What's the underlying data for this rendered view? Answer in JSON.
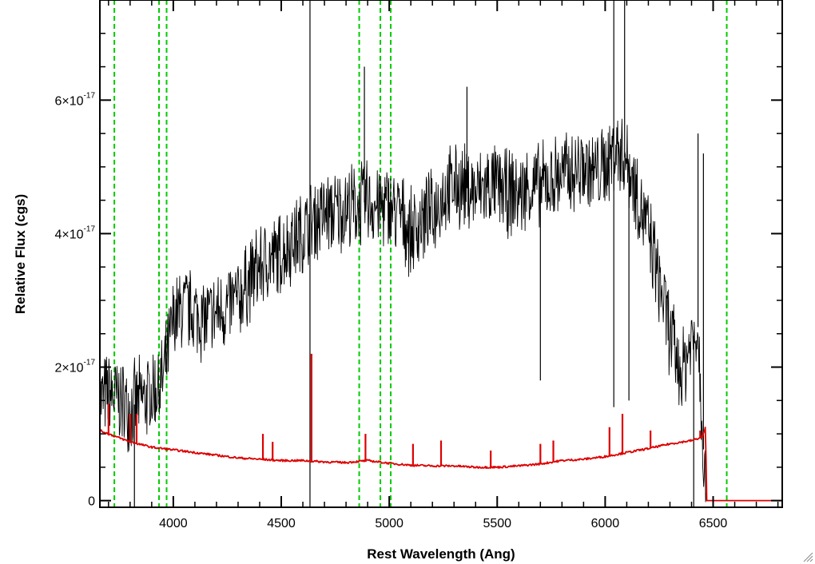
{
  "chart_data": {
    "type": "line",
    "title": "",
    "xlabel": "Rest Wavelength (Ang)",
    "ylabel": "Relative Flux (cgs)",
    "xlim": [
      3660,
      6820
    ],
    "ylim": [
      -1e-18,
      7.5e-17
    ],
    "x_ticks": [
      {
        "value": 4000,
        "label": "4000"
      },
      {
        "value": 4500,
        "label": "4500"
      },
      {
        "value": 5000,
        "label": "5000"
      },
      {
        "value": 5500,
        "label": "5500"
      },
      {
        "value": 6000,
        "label": "6000"
      },
      {
        "value": 6500,
        "label": "6500"
      }
    ],
    "y_ticks": [
      {
        "value": 0,
        "mantissa": "0",
        "exponent": ""
      },
      {
        "value": 2e-17,
        "mantissa": "2×10",
        "exponent": "-17"
      },
      {
        "value": 4e-17,
        "mantissa": "4×10",
        "exponent": "-17"
      },
      {
        "value": 6e-17,
        "mantissa": "6×10",
        "exponent": "-17"
      }
    ],
    "grid": false,
    "reference_lines": {
      "style": "dashed",
      "color": "#00cc00",
      "x": [
        3727,
        3934,
        3969,
        4861,
        4959,
        5007,
        6563
      ]
    },
    "series": [
      {
        "color": "#000000",
        "x": [
          3660,
          3700,
          3750,
          3800,
          3850,
          3900,
          3950,
          3970,
          4000,
          4050,
          4100,
          4150,
          4200,
          4250,
          4300,
          4350,
          4400,
          4450,
          4500,
          4550,
          4600,
          4650,
          4700,
          4750,
          4800,
          4850,
          4900,
          4950,
          5000,
          5050,
          5100,
          5150,
          5200,
          5250,
          5300,
          5350,
          5400,
          5450,
          5500,
          5550,
          5600,
          5650,
          5700,
          5750,
          5800,
          5850,
          5900,
          5950,
          6000,
          6050,
          6100,
          6150,
          6200,
          6250,
          6300,
          6350,
          6400,
          6430,
          6460,
          6470
        ],
        "y": [
          1.5e-17,
          1.6e-17,
          1.5e-17,
          1.4e-17,
          1.5e-17,
          1.6e-17,
          1.8e-17,
          2.1e-17,
          2.7e-17,
          2.9e-17,
          2.8e-17,
          2.7e-17,
          2.8e-17,
          2.9e-17,
          3e-17,
          3.3e-17,
          3.5e-17,
          3.6e-17,
          3.7e-17,
          3.9e-17,
          4e-17,
          4.2e-17,
          4.3e-17,
          4.3e-17,
          4.4e-17,
          4.4e-17,
          4.5e-17,
          4.4e-17,
          4.4e-17,
          4.3e-17,
          4e-17,
          4.2e-17,
          4.3e-17,
          4.6e-17,
          4.7e-17,
          4.7e-17,
          4.6e-17,
          4.7e-17,
          4.7e-17,
          4.6e-17,
          4.6e-17,
          4.7e-17,
          4.7e-17,
          4.8e-17,
          4.9e-17,
          4.9e-17,
          5e-17,
          4.9e-17,
          5e-17,
          5.3e-17,
          5.1e-17,
          4.6e-17,
          4e-17,
          3.3e-17,
          2.5e-17,
          1.9e-17,
          2.4e-17,
          2.6e-17,
          4e-18,
          0
        ],
        "spikes": [
          {
            "x": 4633,
            "y": 7.5e-17
          },
          {
            "x": 4633,
            "y": -1e-18
          },
          {
            "x": 4885,
            "y": 6.5e-17
          },
          {
            "x": 5360,
            "y": 6.2e-17
          },
          {
            "x": 6040,
            "y": 7.5e-17
          },
          {
            "x": 6090,
            "y": 7.5e-17
          },
          {
            "x": 6040,
            "y": 1.4e-17
          },
          {
            "x": 6110,
            "y": 1.5e-17
          },
          {
            "x": 5700,
            "y": 1.8e-17
          },
          {
            "x": 3820,
            "y": -1e-18
          },
          {
            "x": 6430,
            "y": 5.5e-17
          },
          {
            "x": 6410,
            "y": -1e-18
          },
          {
            "x": 6455,
            "y": 5.2e-17
          }
        ]
      },
      {
        "color": "#dd0000",
        "x": [
          3660,
          3700,
          3800,
          3900,
          4000,
          4100,
          4200,
          4300,
          4400,
          4500,
          4600,
          4700,
          4800,
          4900,
          5000,
          5100,
          5200,
          5300,
          5400,
          5500,
          5600,
          5700,
          5800,
          5900,
          6000,
          6100,
          6200,
          6300,
          6400,
          6450,
          6465,
          6470,
          6820
        ],
        "y": [
          1.05e-17,
          1e-17,
          8.8e-18,
          8e-18,
          7.6e-18,
          7.2e-18,
          6.8e-18,
          6.4e-18,
          6.2e-18,
          6e-18,
          6e-18,
          5.8e-18,
          5.7e-18,
          6e-18,
          5.6e-18,
          5.3e-18,
          5.2e-18,
          5.2e-18,
          5e-18,
          5e-18,
          5.2e-18,
          5.5e-18,
          6e-18,
          6.2e-18,
          6.6e-18,
          7.2e-18,
          7.8e-18,
          8.5e-18,
          9e-18,
          9.5e-18,
          1.1e-17,
          0,
          0
        ],
        "spikes": [
          {
            "x": 3700,
            "y": 1.45e-17
          },
          {
            "x": 3800,
            "y": 1.3e-17
          },
          {
            "x": 3830,
            "y": 1.3e-17
          },
          {
            "x": 4415,
            "y": 1e-17
          },
          {
            "x": 4460,
            "y": 8.8e-18
          },
          {
            "x": 4640,
            "y": 2.2e-17
          },
          {
            "x": 4890,
            "y": 1e-17
          },
          {
            "x": 5110,
            "y": 8.5e-18
          },
          {
            "x": 5240,
            "y": 9e-18
          },
          {
            "x": 5470,
            "y": 7.5e-18
          },
          {
            "x": 5700,
            "y": 8.5e-18
          },
          {
            "x": 5760,
            "y": 9e-18
          },
          {
            "x": 6020,
            "y": 1.1e-17
          },
          {
            "x": 6080,
            "y": 1.3e-17
          },
          {
            "x": 6210,
            "y": 1.05e-17
          },
          {
            "x": 6440,
            "y": 1.05e-17
          }
        ]
      }
    ]
  }
}
